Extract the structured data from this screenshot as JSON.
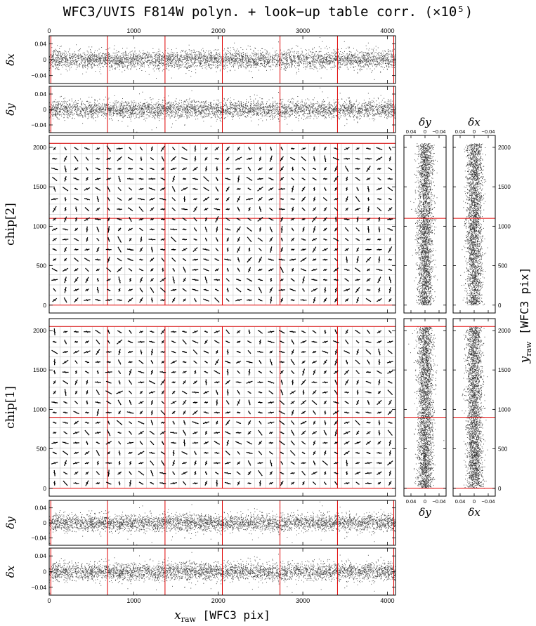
{
  "title": "WFC3/UVIS F814W polyn. + look−up table corr. (×10⁵)",
  "labels": {
    "dx": "δx",
    "dy": "δy",
    "chip2": "chip[2]",
    "chip1": "chip[1]",
    "xraw_sym": "x",
    "xraw_sub": "raw",
    "xraw_unit": "[WFC3 pix]",
    "yraw_sym": "y",
    "yraw_sub": "raw",
    "yraw_unit": "[WFC3 pix]"
  },
  "chart_data": [
    {
      "type": "scatter",
      "panel": "top-dx-vs-x",
      "ylabel": "δx",
      "xlim": [
        0,
        4096
      ],
      "ylim": [
        -0.06,
        0.06
      ],
      "xticks": [
        0,
        1000,
        2000,
        3000,
        4000
      ],
      "yticks": [
        0.04,
        0,
        -0.04
      ],
      "ytick_labels": [
        "0.04",
        "0",
        "−0.04"
      ],
      "scatter_band_sigma": 0.01,
      "red_lines_x": [
        0,
        20,
        690,
        1370,
        2048,
        2730,
        3410,
        4075,
        4096
      ]
    },
    {
      "type": "scatter",
      "panel": "top-dy-vs-x",
      "ylabel": "δy",
      "xlim": [
        0,
        4096
      ],
      "ylim": [
        -0.06,
        0.06
      ],
      "yticks": [
        0.04,
        0,
        -0.04
      ],
      "ytick_labels": [
        "0.04",
        "0",
        "−0.04"
      ],
      "scatter_band_sigma": 0.01,
      "red_lines_x": [
        0,
        20,
        690,
        1370,
        2048,
        2730,
        3410,
        4075,
        4096
      ]
    },
    {
      "type": "vector-field",
      "panel": "chip2",
      "ylabel": "chip[2]",
      "xlim": [
        0,
        4096
      ],
      "ylim": [
        -100,
        2151
      ],
      "yticks": [
        0,
        500,
        1000,
        1500,
        2000
      ],
      "grid_step": 128,
      "red_box": {
        "x": [
          0,
          4096
        ],
        "y": [
          0,
          2051
        ]
      },
      "red_lines_x": [
        690,
        1370,
        2048,
        2730,
        3410
      ],
      "red_lines_y": [
        1100
      ]
    },
    {
      "type": "vector-field",
      "panel": "chip1",
      "ylabel": "chip[1]",
      "xlim": [
        0,
        4096
      ],
      "ylim": [
        -100,
        2151
      ],
      "yticks": [
        0,
        500,
        1000,
        1500,
        2000
      ],
      "grid_step": 128,
      "red_box": {
        "x": [
          0,
          4096
        ],
        "y": [
          0,
          2051
        ]
      },
      "red_lines_x": [
        690,
        1370,
        2048,
        2730,
        3410
      ],
      "red_lines_y": [
        900
      ]
    },
    {
      "type": "scatter",
      "panel": "bottom-dy-vs-x",
      "ylabel": "δy",
      "xlim": [
        0,
        4096
      ],
      "ylim": [
        -0.06,
        0.06
      ],
      "yticks": [
        0.04,
        0,
        -0.04
      ],
      "ytick_labels": [
        "0.04",
        "0",
        "−0.04"
      ],
      "scatter_band_sigma": 0.01,
      "red_lines_x": [
        0,
        20,
        690,
        1370,
        2048,
        2730,
        3410,
        4075,
        4096
      ]
    },
    {
      "type": "scatter",
      "panel": "bottom-dx-vs-x",
      "ylabel": "δx",
      "xlabel": "x_raw [WFC3 pix]",
      "xlim": [
        0,
        4096
      ],
      "ylim": [
        -0.06,
        0.06
      ],
      "xticks": [
        0,
        1000,
        2000,
        3000,
        4000
      ],
      "yticks": [
        0.04,
        0,
        -0.04
      ],
      "ytick_labels": [
        "0.04",
        "0",
        "−0.04"
      ],
      "scatter_band_sigma": 0.01,
      "red_lines_x": [
        0,
        20,
        690,
        1370,
        2048,
        2730,
        3410,
        4075,
        4096
      ]
    },
    {
      "type": "scatter",
      "panel": "side-dy-vs-y",
      "xlabel": "δy",
      "xlim": [
        0.06,
        -0.06
      ],
      "xticks": [
        0.04,
        0,
        -0.04
      ],
      "xtick_labels": [
        "0.04",
        "0",
        "−0.04"
      ],
      "ylim": [
        -100,
        2151
      ],
      "scatter_band_sigma": 0.01,
      "red_lines_y_chip2": [
        1100
      ],
      "red_lines_y_chip1": [
        0,
        900,
        2051
      ]
    },
    {
      "type": "scatter",
      "panel": "side-dx-vs-y",
      "xlabel": "δx",
      "ylabel": "y_raw [WFC3 pix]",
      "xlim": [
        0.06,
        -0.06
      ],
      "xticks": [
        0.04,
        0,
        -0.04
      ],
      "xtick_labels": [
        "0.04",
        "0",
        "−0.04"
      ],
      "ylim": [
        -100,
        2151
      ],
      "yticks": [
        0,
        500,
        1000,
        1500,
        2000
      ],
      "scatter_band_sigma": 0.01,
      "red_lines_y_chip2": [
        1100
      ],
      "red_lines_y_chip1": [
        0,
        900,
        2051
      ]
    }
  ]
}
